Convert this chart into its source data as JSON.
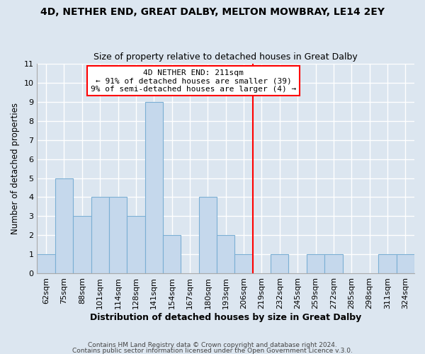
{
  "title": "4D, NETHER END, GREAT DALBY, MELTON MOWBRAY, LE14 2EY",
  "subtitle": "Size of property relative to detached houses in Great Dalby",
  "xlabel": "Distribution of detached houses by size in Great Dalby",
  "ylabel": "Number of detached properties",
  "bar_labels": [
    "62sqm",
    "75sqm",
    "88sqm",
    "101sqm",
    "114sqm",
    "128sqm",
    "141sqm",
    "154sqm",
    "167sqm",
    "180sqm",
    "193sqm",
    "206sqm",
    "219sqm",
    "232sqm",
    "245sqm",
    "259sqm",
    "272sqm",
    "285sqm",
    "298sqm",
    "311sqm",
    "324sqm"
  ],
  "bar_values": [
    1,
    5,
    3,
    4,
    4,
    3,
    9,
    2,
    0,
    4,
    2,
    1,
    0,
    1,
    0,
    1,
    1,
    0,
    0,
    1,
    1
  ],
  "bar_color": "#c5d8ec",
  "bar_edgecolor": "#7bafd4",
  "background_color": "#dce6f0",
  "plot_bg_color": "#dce6f0",
  "grid_color": "#ffffff",
  "ylim": [
    0,
    11
  ],
  "yticks": [
    0,
    1,
    2,
    3,
    4,
    5,
    6,
    7,
    8,
    9,
    10,
    11
  ],
  "annotation_title": "4D NETHER END: 211sqm",
  "annotation_line1": "← 91% of detached houses are smaller (39)",
  "annotation_line2": "9% of semi-detached houses are larger (4) →",
  "vline_x_index": 11.5,
  "footer1": "Contains HM Land Registry data © Crown copyright and database right 2024.",
  "footer2": "Contains public sector information licensed under the Open Government Licence v.3.0."
}
